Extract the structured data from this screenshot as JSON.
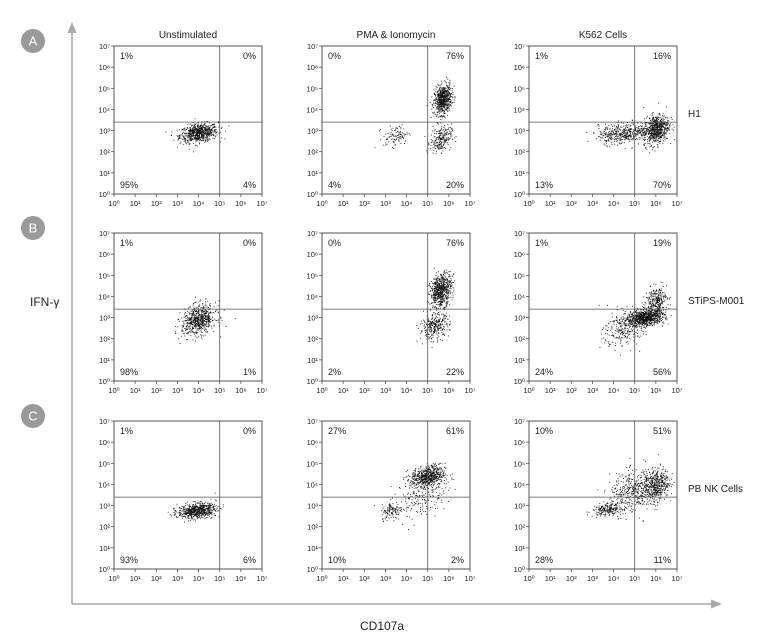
{
  "figure": {
    "x_axis_title": "CD107a",
    "y_axis_title": "IFN-γ",
    "columns": [
      "Unstimulated",
      "PMA & Ionomycin",
      "K562 Cells"
    ],
    "rows": [
      {
        "letter": "A",
        "label": "H1"
      },
      {
        "letter": "B",
        "label": "STiPS-M001"
      },
      {
        "letter": "C",
        "label": "PB NK Cells"
      }
    ],
    "colors": {
      "dots": "#111111",
      "frame": "#444444",
      "axis_arrow": "#aaaaaa",
      "badge": "#9a9a9a"
    }
  },
  "chart_data": {
    "type": "scatter",
    "xlabel": "CD107a",
    "ylabel": "IFN-γ",
    "xscale": "log",
    "yscale": "log",
    "xlim": [
      1,
      10000000
    ],
    "ylim": [
      1,
      10000000
    ],
    "x_tick_labels": [
      "10⁰",
      "10¹",
      "10²",
      "10³",
      "10⁴",
      "10⁵",
      "10⁶",
      "10⁷"
    ],
    "y_tick_labels": [
      "10⁰",
      "10¹",
      "10²",
      "10³",
      "10⁴",
      "10⁵",
      "10⁶",
      "10⁷"
    ],
    "gate": {
      "x": 100000,
      "y": 2500
    },
    "panels": [
      {
        "row": "H1",
        "column": "Unstimulated",
        "UL": "1%",
        "UR": "0%",
        "LL": "95%",
        "LR": "4%",
        "clusters": [
          {
            "x": 10000,
            "y": 800,
            "n": 700,
            "sx": 0.45,
            "sy": 0.22
          }
        ]
      },
      {
        "row": "H1",
        "column": "PMA & Ionomycin",
        "UL": "0%",
        "UR": "76%",
        "LL": "4%",
        "LR": "20%",
        "clusters": [
          {
            "x": 500000,
            "y": 30000,
            "n": 650,
            "sx": 0.2,
            "sy": 0.35
          },
          {
            "x": 400000,
            "y": 400,
            "n": 220,
            "sx": 0.25,
            "sy": 0.3
          },
          {
            "x": 3000,
            "y": 600,
            "n": 100,
            "sx": 0.3,
            "sy": 0.25
          }
        ]
      },
      {
        "row": "H1",
        "column": "K562 Cells",
        "UL": "1%",
        "UR": "16%",
        "LL": "13%",
        "LR": "70%",
        "clusters": [
          {
            "x": 1000000,
            "y": 1200,
            "n": 650,
            "sx": 0.3,
            "sy": 0.35
          },
          {
            "x": 30000,
            "y": 800,
            "n": 450,
            "sx": 0.6,
            "sy": 0.25
          }
        ]
      },
      {
        "row": "STiPS-M001",
        "column": "Unstimulated",
        "UL": "1%",
        "UR": "0%",
        "LL": "98%",
        "LR": "1%",
        "clusters": [
          {
            "x": 10000,
            "y": 800,
            "n": 650,
            "sx": 0.4,
            "sy": 0.35
          }
        ]
      },
      {
        "row": "STiPS-M001",
        "column": "PMA & Ionomycin",
        "UL": "0%",
        "UR": "76%",
        "LL": "2%",
        "LR": "22%",
        "clusters": [
          {
            "x": 400000,
            "y": 20000,
            "n": 650,
            "sx": 0.25,
            "sy": 0.4
          },
          {
            "x": 200000,
            "y": 400,
            "n": 300,
            "sx": 0.35,
            "sy": 0.3
          }
        ]
      },
      {
        "row": "STiPS-M001",
        "column": "K562 Cells",
        "UL": "1%",
        "UR": "19%",
        "LL": "24%",
        "LR": "56%",
        "clusters": [
          {
            "x": 300000,
            "y": 1000,
            "n": 800,
            "sx": 0.45,
            "sy": 0.2
          },
          {
            "x": 1000000,
            "y": 6000,
            "n": 300,
            "sx": 0.25,
            "sy": 0.35
          },
          {
            "x": 30000,
            "y": 300,
            "n": 250,
            "sx": 0.5,
            "sy": 0.45
          }
        ]
      },
      {
        "row": "PB NK Cells",
        "column": "Unstimulated",
        "UL": "1%",
        "UR": "0%",
        "LL": "93%",
        "LR": "6%",
        "clusters": [
          {
            "x": 8000,
            "y": 600,
            "n": 650,
            "sx": 0.45,
            "sy": 0.18
          }
        ]
      },
      {
        "row": "PB NK Cells",
        "column": "PMA & Ionomycin",
        "UL": "27%",
        "UR": "61%",
        "LL": "10%",
        "LR": "2%",
        "clusters": [
          {
            "x": 100000,
            "y": 25000,
            "n": 600,
            "sx": 0.4,
            "sy": 0.25
          },
          {
            "x": 2000,
            "y": 600,
            "n": 120,
            "sx": 0.25,
            "sy": 0.2
          },
          {
            "x": 50000,
            "y": 3000,
            "n": 200,
            "sx": 0.6,
            "sy": 0.5
          }
        ]
      },
      {
        "row": "PB NK Cells",
        "column": "K562 Cells",
        "UL": "10%",
        "UR": "51%",
        "LL": "28%",
        "LR": "11%",
        "clusters": [
          {
            "x": 1000000,
            "y": 10000,
            "n": 400,
            "sx": 0.3,
            "sy": 0.4
          },
          {
            "x": 100000,
            "y": 5000,
            "n": 450,
            "sx": 0.6,
            "sy": 0.5
          },
          {
            "x": 5000,
            "y": 700,
            "n": 200,
            "sx": 0.35,
            "sy": 0.15
          }
        ]
      }
    ]
  }
}
